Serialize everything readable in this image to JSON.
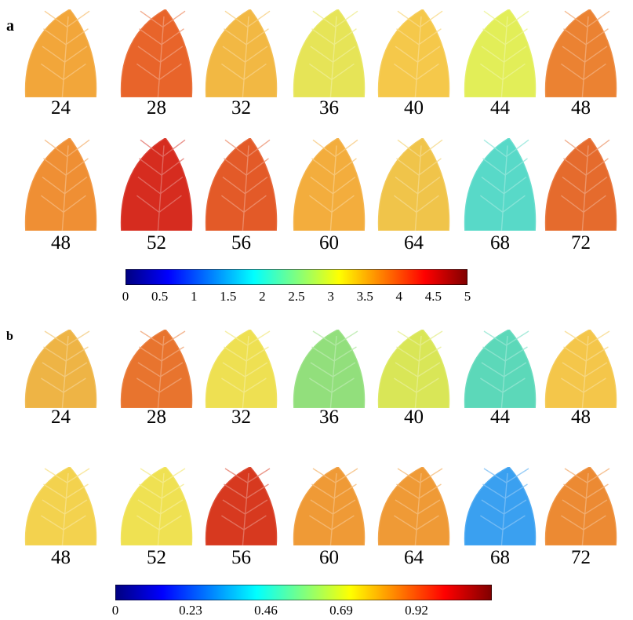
{
  "figure": {
    "panel_a": {
      "letter": "a",
      "row1": {
        "labels": [
          "24",
          "28",
          "32",
          "36",
          "40",
          "44",
          "48"
        ],
        "colors": [
          "#f2a63a",
          "#e8642a",
          "#f2b843",
          "#e6e457",
          "#f5c84a",
          "#e2ee58",
          "#eb8232"
        ]
      },
      "row2": {
        "labels": [
          "48",
          "52",
          "56",
          "60",
          "64",
          "68",
          "72"
        ],
        "colors": [
          "#ef8f34",
          "#d62c1f",
          "#e35a28",
          "#f3ad3d",
          "#f0c44a",
          "#58d9c8",
          "#e56b2d"
        ]
      },
      "colorbar": {
        "ticks": [
          "0",
          "0.5",
          "1",
          "1.5",
          "2",
          "2.5",
          "3",
          "3.5",
          "4",
          "4.5",
          "5"
        ],
        "min": 0,
        "max": 5
      }
    },
    "panel_b": {
      "letter": "b",
      "row1": {
        "labels": [
          "24",
          "28",
          "32",
          "36",
          "40",
          "44",
          "48"
        ],
        "colors": [
          "#eeb445",
          "#e8742e",
          "#eee052",
          "#92df7c",
          "#d9e657",
          "#5cd8b9",
          "#f4c64a"
        ]
      },
      "row2": {
        "labels": [
          "48",
          "52",
          "56",
          "60",
          "64",
          "68",
          "72"
        ],
        "colors": [
          "#f3d24e",
          "#efe152",
          "#d7391f",
          "#ef9a36",
          "#ef9a36",
          "#3aa0f0",
          "#ec8a33"
        ]
      },
      "colorbar": {
        "ticks": [
          "0",
          "0.23",
          "0.46",
          "0.69",
          "0.92"
        ],
        "min": 0,
        "max": 1.15
      }
    },
    "colormap": [
      "#00007f",
      "#0000ff",
      "#007fff",
      "#00ffff",
      "#7fff7f",
      "#ffff00",
      "#ff7f00",
      "#ff0000",
      "#7f0000"
    ]
  }
}
